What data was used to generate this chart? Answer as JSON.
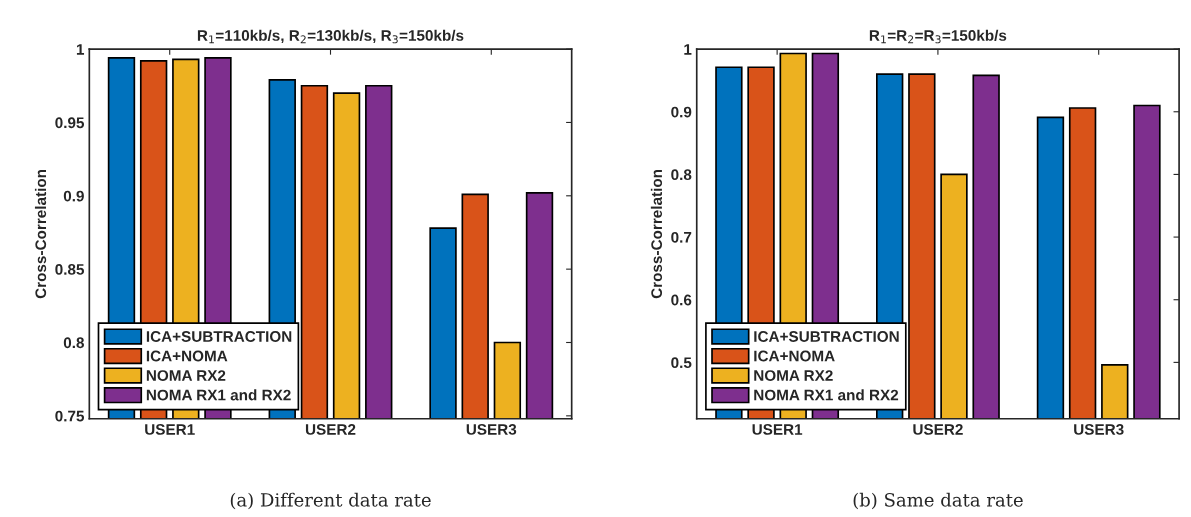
{
  "chart_data": [
    {
      "type": "bar",
      "title": "R$_{1}$=110kb/s, R$_{2}$=130kb/s, R$_{3}$=150kb/s",
      "ylabel": "Cross-Correlation",
      "categories": [
        "USER1",
        "USER2",
        "USER3"
      ],
      "series": [
        {
          "name": "ICA+SUBTRACTION",
          "color": "#0072bd",
          "values": [
            0.994,
            0.979,
            0.878
          ]
        },
        {
          "name": "ICA+NOMA",
          "color": "#d95319",
          "values": [
            0.992,
            0.975,
            0.901
          ]
        },
        {
          "name": "NOMA RX2",
          "color": "#edb120",
          "values": [
            0.993,
            0.97,
            0.8
          ]
        },
        {
          "name": "NOMA RX1 and RX2",
          "color": "#7e2f8e",
          "values": [
            0.994,
            0.975,
            0.902
          ]
        }
      ],
      "ylim": [
        0.748,
        1
      ],
      "yticks": [
        0.75,
        0.8,
        0.85,
        0.9,
        0.95,
        1
      ],
      "legend": "bottom left",
      "grid": false,
      "annotations": [
        "(a) Different data rate"
      ]
    },
    {
      "type": "bar",
      "title": "R$_{1}$=R$_{2}$=R$_{3}$=150kb/s",
      "ylabel": "Cross-Correlation",
      "categories": [
        "USER1",
        "USER2",
        "USER3"
      ],
      "series": [
        {
          "name": "ICA+SUBTRACTION",
          "color": "#0072bd",
          "values": [
            0.971,
            0.96,
            0.891
          ]
        },
        {
          "name": "ICA+NOMA",
          "color": "#d95319",
          "values": [
            0.971,
            0.96,
            0.906
          ]
        },
        {
          "name": "NOMA RX2",
          "color": "#edb120",
          "values": [
            0.993,
            0.8,
            0.496
          ]
        },
        {
          "name": "NOMA RX1 and RX2",
          "color": "#7e2f8e",
          "values": [
            0.993,
            0.958,
            0.91
          ]
        }
      ],
      "ylim": [
        0.41,
        1
      ],
      "yticks": [
        0.5,
        0.6,
        0.7,
        0.8,
        0.9,
        1
      ],
      "legend": "bottom left",
      "grid": false,
      "annotations": [
        "(b) Same data rate"
      ]
    }
  ]
}
